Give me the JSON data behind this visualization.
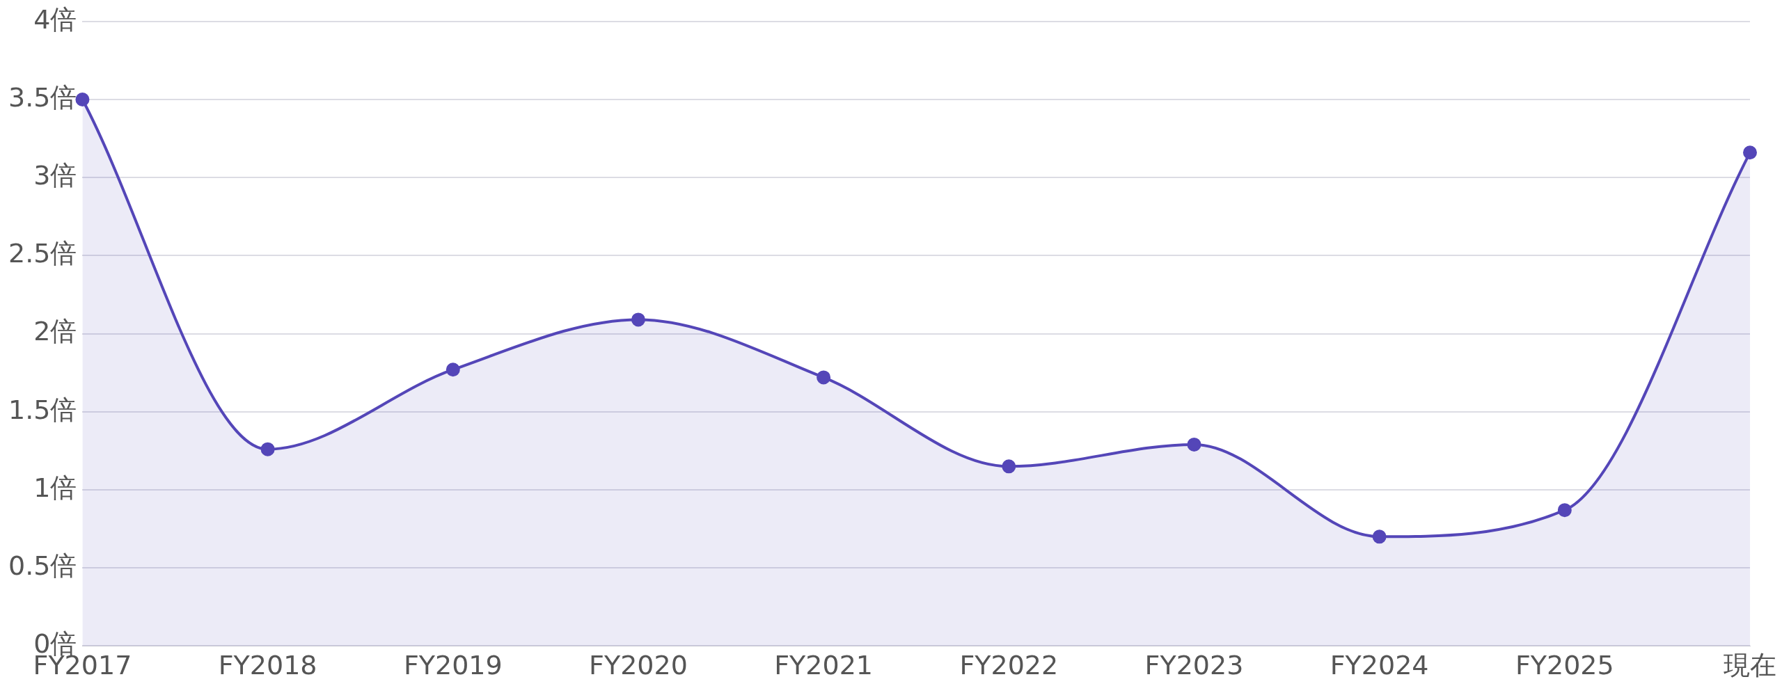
{
  "chart_data": {
    "type": "area",
    "categories": [
      "FY2017",
      "FY2018",
      "FY2019",
      "FY2020",
      "FY2021",
      "FY2022",
      "FY2023",
      "FY2024",
      "FY2025",
      "現在"
    ],
    "series": [
      {
        "color": "#5446b8",
        "values": [
          3.5,
          1.26,
          1.77,
          2.09,
          1.72,
          1.15,
          1.29,
          0.7,
          0.87,
          3.16
        ]
      }
    ],
    "ylim": [
      0,
      4
    ],
    "yticks": [
      {
        "value": 0,
        "label": "0倍"
      },
      {
        "value": 0.5,
        "label": "0.5倍"
      },
      {
        "value": 1,
        "label": "1倍"
      },
      {
        "value": 1.5,
        "label": "1.5倍"
      },
      {
        "value": 2,
        "label": "2倍"
      },
      {
        "value": 2.5,
        "label": "2.5倍"
      },
      {
        "value": 3,
        "label": "3倍"
      },
      {
        "value": 3.5,
        "label": "3.5倍"
      },
      {
        "value": 4,
        "label": "4倍"
      }
    ],
    "grid": "y",
    "legend": false,
    "marker": "circle",
    "line_style": "solid"
  }
}
